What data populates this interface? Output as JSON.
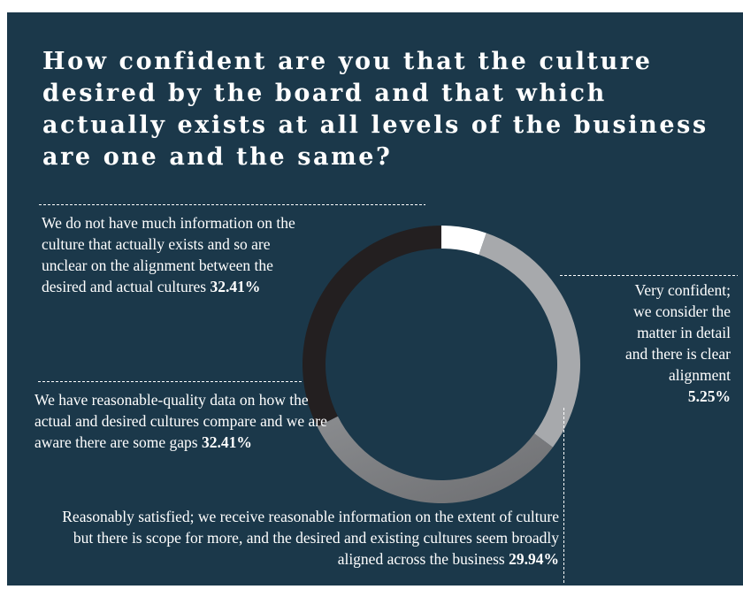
{
  "colors": {
    "background": "#1b384a",
    "text": "#ffffff"
  },
  "chart_data": {
    "type": "pie",
    "style": "donut",
    "title": "How confident are you that the culture desired by the board and that which actually exists at all levels of the business are one and the same?",
    "slices": [
      {
        "label": "We do not have much information on the culture that actually exists and so are unclear on the alignment between the desired and actual cultures",
        "value": 32.41,
        "value_label": "32.41%",
        "color": "#231f20"
      },
      {
        "label": "Very confident; we consider the matter in detail and there is clear alignment",
        "value": 5.25,
        "value_label": "5.25%",
        "color": "#ffffff"
      },
      {
        "label": "Reasonably satisfied; we receive reasonable information on the extent of culture but there is scope for more, and the desired and existing cultures seem broadly aligned across the business",
        "value": 29.94,
        "value_label": "29.94%",
        "color": "#a7a9ac"
      },
      {
        "label": "We have reasonable-quality data on how the actual and desired cultures compare and we are aware there are some gaps",
        "value": 32.41,
        "value_label": "32.41%",
        "color": "#808285"
      }
    ]
  }
}
